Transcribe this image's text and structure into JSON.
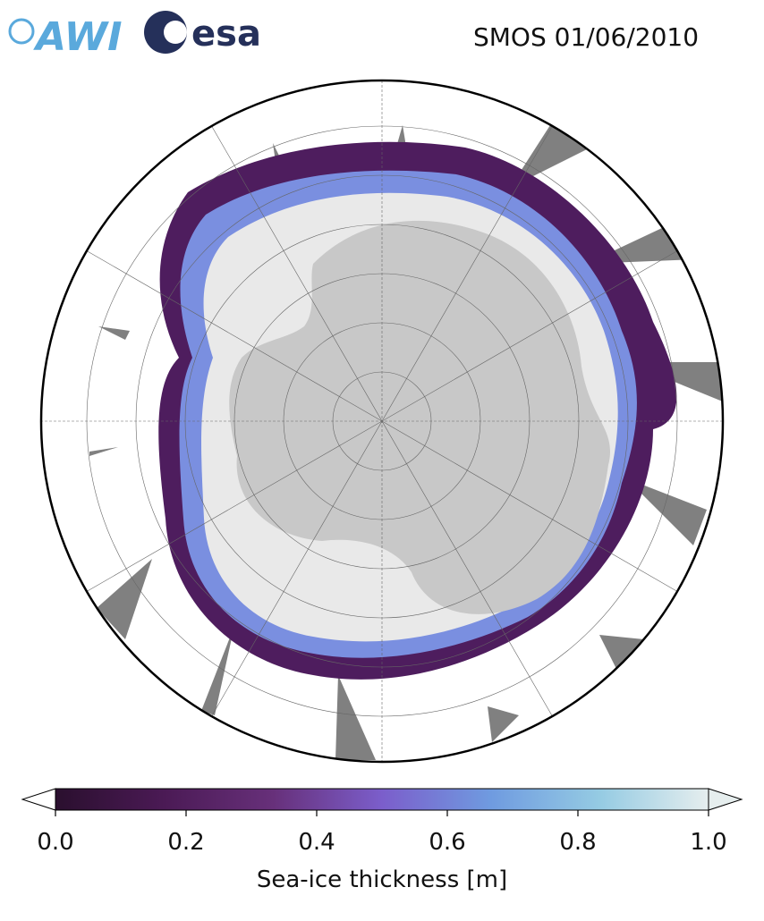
{
  "header": {
    "logos": [
      "AWI",
      "esa"
    ],
    "title": "SMOS 01/06/2010"
  },
  "colorbar": {
    "label": "Sea-ice thickness [m]",
    "lim": [
      0,
      1
    ],
    "ticks": [
      {
        "value": 0,
        "label": "0.0"
      },
      {
        "value": 0.2,
        "label": "0.2"
      },
      {
        "value": 0.4,
        "label": "0.4"
      },
      {
        "value": 0.6,
        "label": "0.6"
      },
      {
        "value": 0.8,
        "label": "0.8"
      },
      {
        "value": 1,
        "label": "1.0"
      }
    ],
    "colormap": [
      "#2a0f2e",
      "#4b1a55",
      "#67307a",
      "#7b5ecb",
      "#6f9be0",
      "#95cbe3",
      "#e6eeee"
    ]
  }
}
